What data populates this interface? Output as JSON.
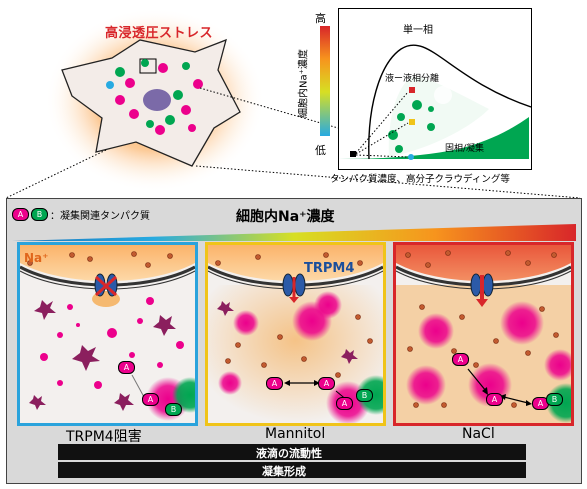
{
  "cell": {
    "title": "高浸透圧ストレス"
  },
  "phase_diagram": {
    "y_axis_label": "細胞内Na⁺濃度",
    "y_high": "高",
    "y_low": "低",
    "x_axis_label": "タンパク質濃度、高分子クラウディング等",
    "region_single": "単一相",
    "region_llps": "液ー液相分離",
    "region_solid": "固相/凝集"
  },
  "legend": {
    "badge_a": "A",
    "badge_b": "B",
    "text": "：凝集関連タンパク質"
  },
  "gradient_label": "細胞内Na⁺濃度",
  "panels": [
    {
      "caption": "TRPM4阻害",
      "na_label": "Na⁺",
      "border": "#2aa3dc"
    },
    {
      "caption": "Mannitol",
      "channel_label": "TRPM4",
      "border": "#f0c419"
    },
    {
      "caption": "NaCl",
      "border": "#d8262a"
    }
  ],
  "badges": {
    "a": "A",
    "b": "B"
  },
  "bottom_arrows": {
    "fluidity": "液滴の流動性",
    "aggregation": "凝集形成"
  }
}
